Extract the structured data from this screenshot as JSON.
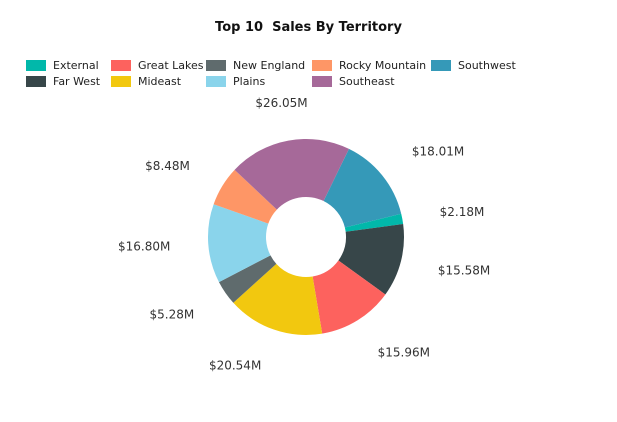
{
  "chart_data": {
    "type": "pie",
    "variant": "donut",
    "title": "Top 10  Sales By Territory",
    "legend_position": "top-left",
    "slices": [
      {
        "name": "Southwest",
        "value": 18.01,
        "label": "$18.01M",
        "color": "#3599B8"
      },
      {
        "name": "External",
        "value": 2.18,
        "label": "$2.18M",
        "color": "#01B8AA"
      },
      {
        "name": "Far West",
        "value": 15.58,
        "label": "$15.58M",
        "color": "#374649"
      },
      {
        "name": "Great Lakes",
        "value": 15.96,
        "label": "$15.96M",
        "color": "#FD625E"
      },
      {
        "name": "Mideast",
        "value": 20.54,
        "label": "$20.54M",
        "color": "#F2C80F"
      },
      {
        "name": "New England",
        "value": 5.28,
        "label": "$5.28M",
        "color": "#5F6B6D"
      },
      {
        "name": "Plains",
        "value": 16.8,
        "label": "$16.80M",
        "color": "#8AD4EB"
      },
      {
        "name": "Rocky Mountain",
        "value": 8.48,
        "label": "$8.48M",
        "color": "#FE9666"
      },
      {
        "name": "Southeast",
        "value": 26.05,
        "label": "$26.05M",
        "color": "#A66999"
      }
    ],
    "legend": [
      {
        "name": "External",
        "color": "#01B8AA"
      },
      {
        "name": "Great Lakes",
        "color": "#FD625E"
      },
      {
        "name": "New England",
        "color": "#5F6B6D"
      },
      {
        "name": "Rocky Mountain",
        "color": "#FE9666"
      },
      {
        "name": "Southwest",
        "color": "#3599B8"
      },
      {
        "name": "Far West",
        "color": "#374649"
      },
      {
        "name": "Mideast",
        "color": "#F2C80F"
      },
      {
        "name": "Plains",
        "color": "#8AD4EB"
      },
      {
        "name": "Southeast",
        "color": "#A66999"
      }
    ]
  }
}
